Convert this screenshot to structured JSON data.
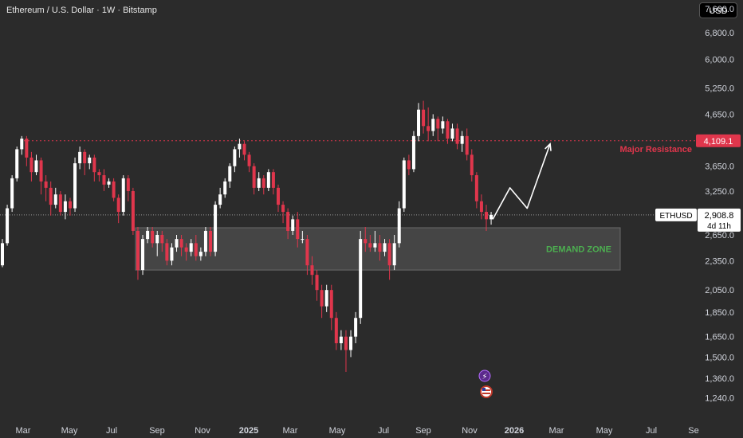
{
  "header": {
    "title": "Ethereum / U.S. Dollar · 1W · Bitstamp",
    "currency_button": "USD"
  },
  "colors": {
    "background": "#2b2b2b",
    "bull": "#ffffff",
    "bear": "#e0364c",
    "resistance": "#e0364c",
    "demand_zone_fill": "#4a4a4a",
    "demand_zone_text": "#4caf50"
  },
  "chart_data": {
    "type": "candlestick",
    "symbol": "ETHUSD",
    "price_scale": "log",
    "ylim": [
      1150,
      7800
    ],
    "y_ticks": [
      "7,600.0",
      "6,800.0",
      "6,000.0",
      "5,250.0",
      "4,650.0",
      "4,109.1",
      "3,650.0",
      "3,250.0",
      "2,908.8",
      "2,650.0",
      "2,350.0",
      "2,050.0",
      "1,850.0",
      "1,650.0",
      "1,500.0",
      "1,360.0",
      "1,240.0"
    ],
    "y_tick_values": [
      7600,
      6800,
      6000,
      5250,
      4650,
      3650,
      3250,
      2650,
      2350,
      2050,
      1850,
      1650,
      1500,
      1360,
      1240
    ],
    "x_ticks": [
      "Mar",
      "May",
      "Jul",
      "Sep",
      "Nov",
      "2025",
      "Mar",
      "May",
      "Jul",
      "Sep",
      "Nov",
      "2026",
      "Mar",
      "May",
      "Jul",
      "Se"
    ],
    "x_tick_bold": [
      "2025",
      "2026"
    ],
    "last_price": {
      "symbol": "ETHUSD",
      "value": "2,908.8",
      "countdown": "4d 11h"
    },
    "resistance": {
      "value": 4109.1,
      "label_value": "4,109.1",
      "label": "Major Resistance"
    },
    "demand_zone": {
      "low": 2250,
      "high": 2740,
      "label": "DEMAND ZONE"
    },
    "projection_path": [
      [
        0,
        2850
      ],
      [
        3,
        3300
      ],
      [
        6,
        3000
      ],
      [
        10,
        4050
      ]
    ],
    "candles": [
      [
        2300,
        2550,
        2280,
        2600
      ],
      [
        2550,
        3000,
        2520,
        3050
      ],
      [
        3000,
        3450,
        2950,
        3500
      ],
      [
        3450,
        3950,
        3400,
        4000
      ],
      [
        3950,
        4150,
        3850,
        4200
      ],
      [
        4150,
        3800,
        3650,
        4200
      ],
      [
        3800,
        3550,
        3400,
        3900
      ],
      [
        3550,
        3750,
        3500,
        3850
      ],
      [
        3750,
        3400,
        3200,
        3800
      ],
      [
        3400,
        3300,
        3100,
        3500
      ],
      [
        3300,
        3050,
        2900,
        3400
      ],
      [
        3050,
        3200,
        3000,
        3300
      ],
      [
        3200,
        2950,
        2900,
        3250
      ],
      [
        2950,
        3100,
        2850,
        3200
      ],
      [
        3100,
        3000,
        2900,
        3150
      ],
      [
        3000,
        3700,
        2950,
        3800
      ],
      [
        3700,
        3900,
        3600,
        4000
      ],
      [
        3900,
        3700,
        3500,
        3950
      ],
      [
        3700,
        3800,
        3600,
        3850
      ],
      [
        3800,
        3550,
        3400,
        3850
      ],
      [
        3550,
        3500,
        3400,
        3600
      ],
      [
        3500,
        3350,
        3250,
        3600
      ],
      [
        3350,
        3400,
        3300,
        3450
      ],
      [
        3400,
        3150,
        3100,
        3450
      ],
      [
        3150,
        2950,
        2800,
        3200
      ],
      [
        2950,
        3450,
        2900,
        3500
      ],
      [
        3450,
        3250,
        3100,
        3500
      ],
      [
        3250,
        2700,
        2650,
        3300
      ],
      [
        2700,
        2250,
        2150,
        2750
      ],
      [
        2250,
        2600,
        2200,
        2650
      ],
      [
        2600,
        2700,
        2550,
        2750
      ],
      [
        2700,
        2550,
        2500,
        2750
      ],
      [
        2550,
        2650,
        2400,
        2700
      ],
      [
        2650,
        2550,
        2450,
        2700
      ],
      [
        2550,
        2350,
        2300,
        2600
      ],
      [
        2350,
        2500,
        2300,
        2550
      ],
      [
        2500,
        2600,
        2450,
        2650
      ],
      [
        2600,
        2500,
        2400,
        2650
      ],
      [
        2500,
        2450,
        2350,
        2550
      ],
      [
        2450,
        2550,
        2400,
        2600
      ],
      [
        2550,
        2400,
        2350,
        2650
      ],
      [
        2400,
        2450,
        2350,
        2500
      ],
      [
        2450,
        2700,
        2400,
        2750
      ],
      [
        2700,
        2450,
        2400,
        2750
      ],
      [
        2450,
        3050,
        2400,
        3100
      ],
      [
        3050,
        3200,
        3000,
        3300
      ],
      [
        3200,
        3400,
        3150,
        3450
      ],
      [
        3400,
        3650,
        3300,
        3700
      ],
      [
        3650,
        3950,
        3550,
        4000
      ],
      [
        3950,
        4050,
        3800,
        4150
      ],
      [
        4050,
        3850,
        3750,
        4100
      ],
      [
        3850,
        3650,
        3550,
        3900
      ],
      [
        3650,
        3300,
        3200,
        3700
      ],
      [
        3300,
        3450,
        3250,
        3550
      ],
      [
        3450,
        3300,
        3200,
        3500
      ],
      [
        3300,
        3550,
        3250,
        3600
      ],
      [
        3550,
        3300,
        3200,
        3600
      ],
      [
        3300,
        3050,
        2950,
        3350
      ],
      [
        3050,
        2950,
        2800,
        3100
      ],
      [
        2950,
        2700,
        2600,
        3000
      ],
      [
        2700,
        2850,
        2650,
        2900
      ],
      [
        2850,
        2600,
        2500,
        2950
      ],
      [
        2600,
        2600,
        2550,
        2700
      ],
      [
        2600,
        2300,
        2200,
        2650
      ],
      [
        2300,
        2200,
        2100,
        2400
      ],
      [
        2200,
        2050,
        1950,
        2250
      ],
      [
        2050,
        1900,
        1800,
        2100
      ],
      [
        1900,
        2050,
        1850,
        2100
      ],
      [
        2050,
        1800,
        1700,
        2100
      ],
      [
        1800,
        1600,
        1550,
        1850
      ],
      [
        1600,
        1650,
        1550,
        1700
      ],
      [
        1650,
        1550,
        1400,
        1700
      ],
      [
        1550,
        1650,
        1500,
        1700
      ],
      [
        1650,
        1800,
        1600,
        1850
      ],
      [
        1800,
        2600,
        1750,
        2700
      ],
      [
        2600,
        2550,
        2450,
        2750
      ],
      [
        2550,
        2500,
        2450,
        2650
      ],
      [
        2500,
        2550,
        2450,
        2700
      ],
      [
        2550,
        2450,
        2350,
        2650
      ],
      [
        2450,
        2550,
        2400,
        2600
      ],
      [
        2550,
        2300,
        2150,
        2600
      ],
      [
        2300,
        2550,
        2250,
        2650
      ],
      [
        2550,
        3000,
        2500,
        3100
      ],
      [
        3000,
        3750,
        2950,
        3800
      ],
      [
        3750,
        3600,
        3500,
        3850
      ],
      [
        3600,
        4200,
        3550,
        4300
      ],
      [
        4200,
        4750,
        4100,
        4900
      ],
      [
        4750,
        4400,
        4250,
        4950
      ],
      [
        4400,
        4300,
        4100,
        4800
      ],
      [
        4300,
        4550,
        4200,
        4650
      ],
      [
        4550,
        4350,
        4100,
        4600
      ],
      [
        4350,
        4500,
        4250,
        4600
      ],
      [
        4500,
        4150,
        4050,
        4550
      ],
      [
        4150,
        4350,
        4100,
        4450
      ],
      [
        4350,
        4050,
        3950,
        4450
      ],
      [
        4050,
        4200,
        3900,
        4300
      ],
      [
        4200,
        3850,
        3750,
        4350
      ],
      [
        3850,
        3500,
        3400,
        3950
      ],
      [
        3500,
        3100,
        3000,
        3550
      ],
      [
        3100,
        2950,
        2850,
        3200
      ],
      [
        2950,
        2850,
        2700,
        3050
      ],
      [
        2850,
        2908.8,
        2780,
        2950
      ]
    ]
  }
}
